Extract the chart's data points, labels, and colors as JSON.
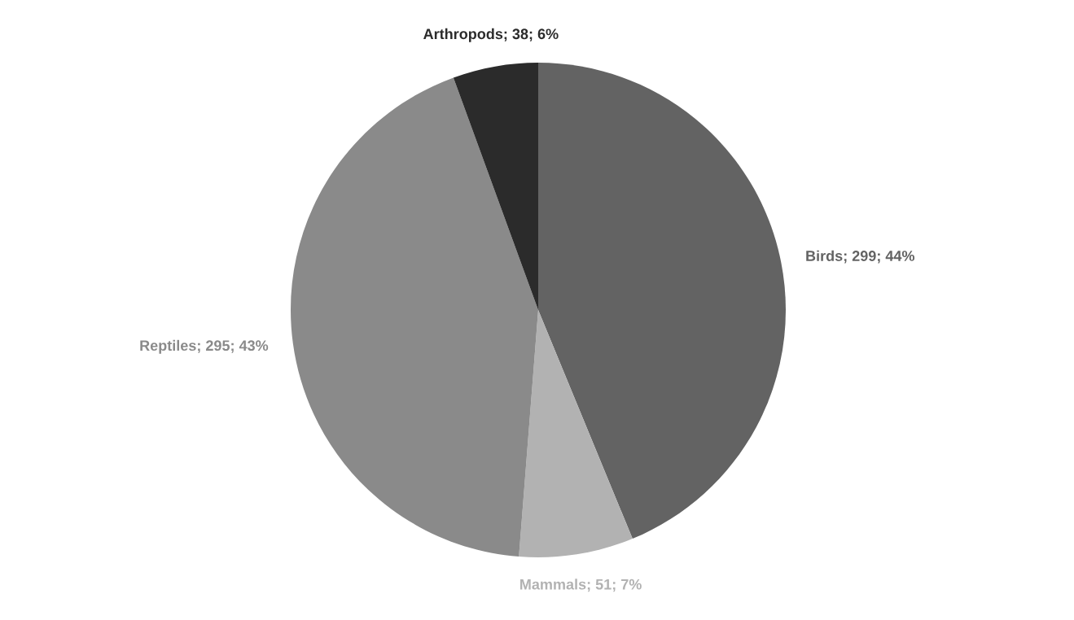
{
  "chart_data": {
    "type": "pie",
    "categories": [
      "Birds; 299; 44%",
      "Mammals; 51; 7%",
      "Reptiles; 295; 43%",
      "Arthropods; 38; 6%"
    ],
    "values": [
      299,
      51,
      295,
      38
    ],
    "colors": [
      "#636363",
      "#b2b2b2",
      "#8a8a8a",
      "#2b2b2b"
    ]
  }
}
